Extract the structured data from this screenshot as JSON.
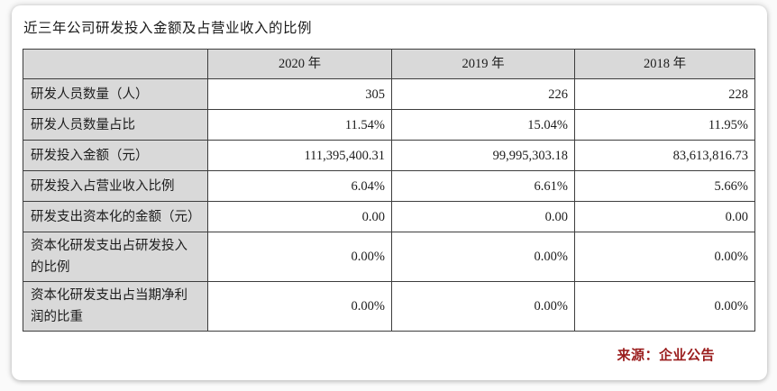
{
  "card": {
    "title": "近三年公司研发投入金额及占营业收入的比例",
    "source": "来源：企业公告"
  },
  "table": {
    "header": [
      "",
      "2020 年",
      "2019 年",
      "2018 年"
    ],
    "rows": [
      {
        "label": "研发人员数量（人）",
        "values": [
          "305",
          "226",
          "228"
        ]
      },
      {
        "label": "研发人员数量占比",
        "values": [
          "11.54%",
          "15.04%",
          "11.95%"
        ]
      },
      {
        "label": "研发投入金额（元）",
        "values": [
          "111,395,400.31",
          "99,995,303.18",
          "83,613,816.73"
        ]
      },
      {
        "label": "研发投入占营业收入比例",
        "values": [
          "6.04%",
          "6.61%",
          "5.66%"
        ]
      },
      {
        "label": "研发支出资本化的金额（元）",
        "values": [
          "0.00",
          "0.00",
          "0.00"
        ]
      },
      {
        "label": "资本化研发支出占研发投入\n的比例",
        "values": [
          "0.00%",
          "0.00%",
          "0.00%"
        ]
      },
      {
        "label": "资本化研发支出占当期净利\n润的比重",
        "values": [
          "0.00%",
          "0.00%",
          "0.00%"
        ]
      }
    ]
  },
  "colors": {
    "cell_gray": "#d9d9d9",
    "border": "#3d3d3d",
    "text": "#1c1c1c",
    "source_text": "#9a1c1c"
  }
}
